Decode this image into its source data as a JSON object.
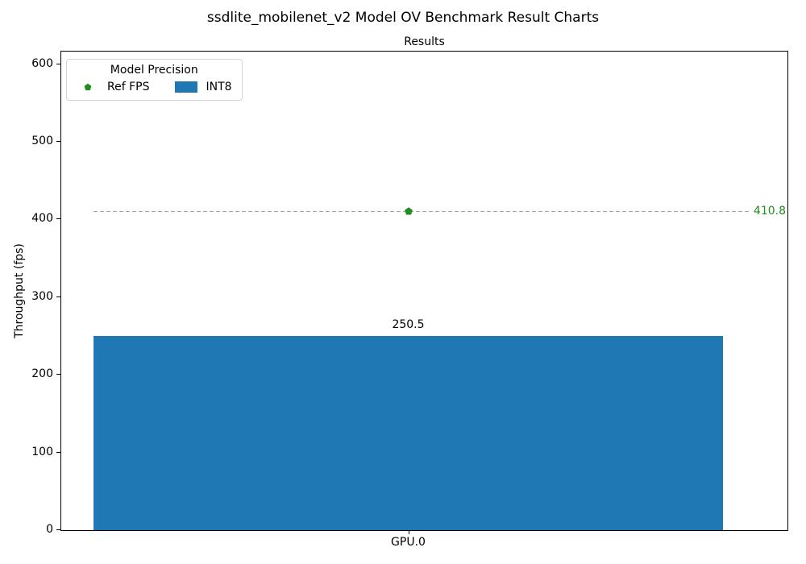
{
  "figure_title": "ssdlite_mobilenet_v2 Model OV Benchmark Result Charts",
  "legend": {
    "title": "Model Precision",
    "items": [
      {
        "label": "Ref FPS",
        "glyph": "pentagon-marker"
      },
      {
        "label": "INT8",
        "glyph": "color-patch"
      }
    ]
  },
  "colors": {
    "bar_blue": "#1f77b4",
    "ref_green": "#228B22",
    "ref_line_gray": "#a0a0a0",
    "spine_black": "#000000"
  },
  "chart_data": {
    "type": "bar",
    "title": "Results",
    "xlabel": "",
    "ylabel": "Throughput (fps)",
    "categories": [
      "GPU.0"
    ],
    "series": [
      {
        "name": "INT8",
        "values": [
          250.5
        ],
        "color": "#1f77b4"
      }
    ],
    "reference_line": {
      "name": "Ref FPS",
      "value": 410.8,
      "line_color": "#a0a0a0",
      "marker": "pentagon",
      "marker_color": "#228B22",
      "label_color": "#228B22",
      "style": "dashed"
    },
    "bar_value_label": "250.5",
    "ref_value_label": "410.8",
    "ylim": [
      0,
      616.2
    ],
    "yticks": [
      0,
      100,
      200,
      300,
      400,
      500,
      600
    ],
    "grid": false,
    "legend_position": "upper-left",
    "legend_title": "Model Precision"
  }
}
